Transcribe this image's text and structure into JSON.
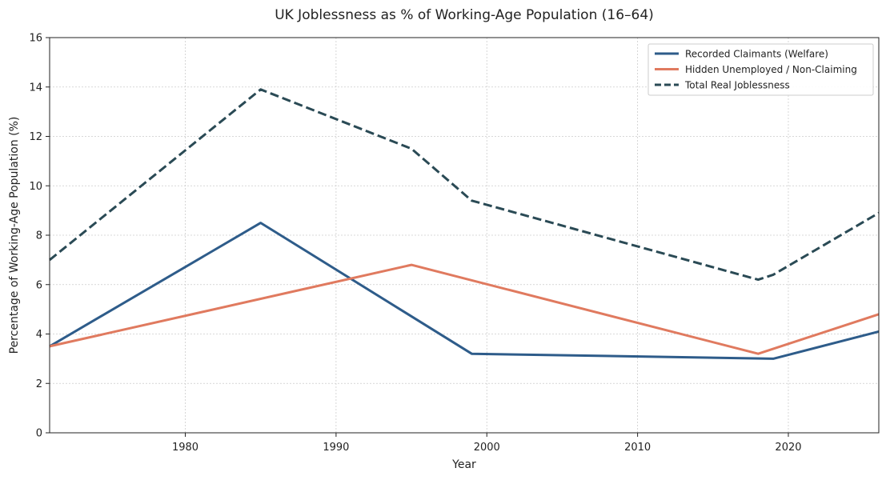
{
  "chart_data": {
    "type": "line",
    "title": "UK Joblessness as % of Working-Age Population (16–64)",
    "xlabel": "Year",
    "ylabel": "Percentage of Working-Age Population (%)",
    "xlim": [
      1971,
      2026
    ],
    "ylim": [
      0,
      16
    ],
    "xticks": [
      1980,
      1990,
      2000,
      2010,
      2020
    ],
    "yticks": [
      0,
      2,
      4,
      6,
      8,
      10,
      12,
      14,
      16
    ],
    "grid": true,
    "legend_position": "top-right",
    "series": [
      {
        "name": "Recorded Claimants (Welfare)",
        "color": "#2e5c8a",
        "style": "solid",
        "x": [
          1971,
          1985,
          1999,
          2019,
          2026
        ],
        "values": [
          3.5,
          8.5,
          3.2,
          3.0,
          4.1
        ]
      },
      {
        "name": "Hidden Unemployed / Non-Claiming",
        "color": "#e07a5f",
        "style": "solid",
        "x": [
          1971,
          1995,
          2018,
          2026
        ],
        "values": [
          3.5,
          6.8,
          3.2,
          4.8
        ]
      },
      {
        "name": "Total Real Joblessness",
        "color": "#2a4a55",
        "style": "dashed",
        "x": [
          1971,
          1985,
          1995,
          1999,
          2018,
          2019,
          2026
        ],
        "values": [
          7.0,
          13.9,
          11.5,
          9.4,
          6.2,
          6.4,
          8.9
        ]
      }
    ]
  }
}
